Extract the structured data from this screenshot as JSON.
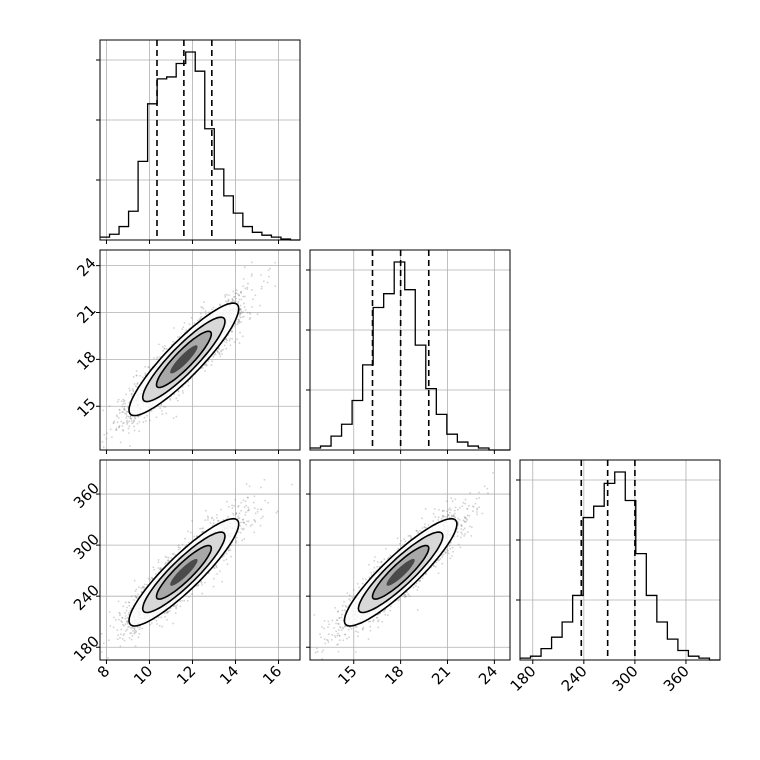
{
  "chart_data": {
    "type": "corner",
    "grid": true,
    "parameters": [
      {
        "range": [
          7.7,
          17.0
        ],
        "ticks": [
          8,
          10,
          12,
          14,
          16
        ],
        "tick_labels": [
          "8",
          "10",
          "12",
          "14",
          "16"
        ],
        "quantiles": [
          10.35,
          11.6,
          12.9
        ],
        "hist_bins": [
          0.015,
          0.03,
          0.07,
          0.15,
          0.41,
          0.71,
          0.84,
          0.85,
          0.92,
          0.98,
          0.88,
          0.58,
          0.37,
          0.23,
          0.14,
          0.07,
          0.04,
          0.025,
          0.015,
          0.005,
          0.0
        ]
      },
      {
        "range": [
          12.2,
          25.0
        ],
        "ticks": [
          15,
          18,
          21,
          24
        ],
        "tick_labels": [
          "15",
          "18",
          "21",
          "24"
        ],
        "quantiles": [
          16.2,
          18.0,
          19.8
        ],
        "hist_bins": [
          0.01,
          0.02,
          0.07,
          0.13,
          0.25,
          0.43,
          0.72,
          0.79,
          0.95,
          0.81,
          0.53,
          0.31,
          0.18,
          0.08,
          0.04,
          0.02,
          0.01,
          0.0,
          0.0
        ]
      },
      {
        "range": [
          165,
          400
        ],
        "ticks": [
          180,
          240,
          300,
          360
        ],
        "tick_labels": [
          "180",
          "240",
          "300",
          "360"
        ],
        "quantiles": [
          237,
          268,
          300
        ],
        "hist_bins": [
          0.01,
          0.02,
          0.06,
          0.12,
          0.2,
          0.34,
          0.75,
          0.81,
          0.93,
          0.99,
          0.84,
          0.56,
          0.34,
          0.2,
          0.11,
          0.05,
          0.02,
          0.01,
          0.0
        ]
      }
    ],
    "pairs": [
      {
        "x_param": 0,
        "y_param": 1,
        "correlation": 0.9
      },
      {
        "x_param": 0,
        "y_param": 2,
        "correlation": 0.9
      },
      {
        "x_param": 1,
        "y_param": 2,
        "correlation": 0.9
      }
    ],
    "colors": {
      "line": "#000000",
      "grid": "#b0b0b0",
      "points": "#7f7f7f"
    }
  }
}
